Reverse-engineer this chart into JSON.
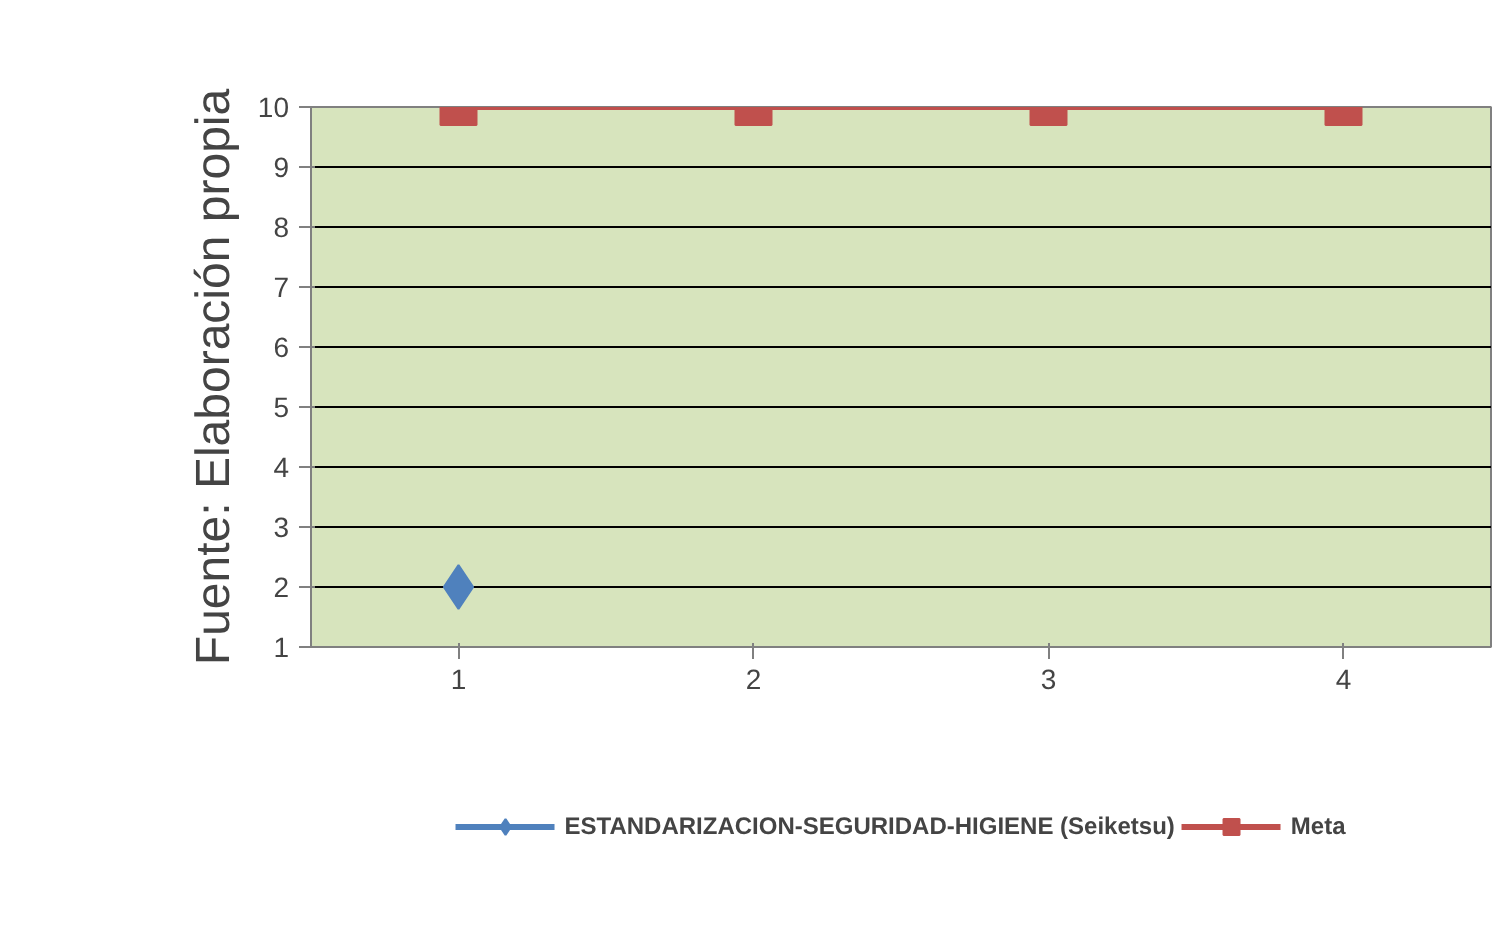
{
  "chart_data": {
    "type": "line",
    "categories": [
      "1",
      "2",
      "3",
      "4"
    ],
    "ylim": [
      1,
      10
    ],
    "yticks": [
      1,
      2,
      3,
      4,
      5,
      6,
      7,
      8,
      9,
      10
    ],
    "grid": "y",
    "legend": "bottom",
    "annotations": [
      "Fuente: Elaboración propia"
    ],
    "series": [
      {
        "name": "ESTANDARIZACION-SEGURIDAD-HIGIENE (Seiketsu)",
        "color": "#4f81bd",
        "marker": "diamond",
        "values": [
          2,
          null,
          null,
          null
        ]
      },
      {
        "name": "Meta",
        "color": "#c0504d",
        "marker": "square",
        "values": [
          10,
          10,
          10,
          10
        ]
      }
    ]
  }
}
